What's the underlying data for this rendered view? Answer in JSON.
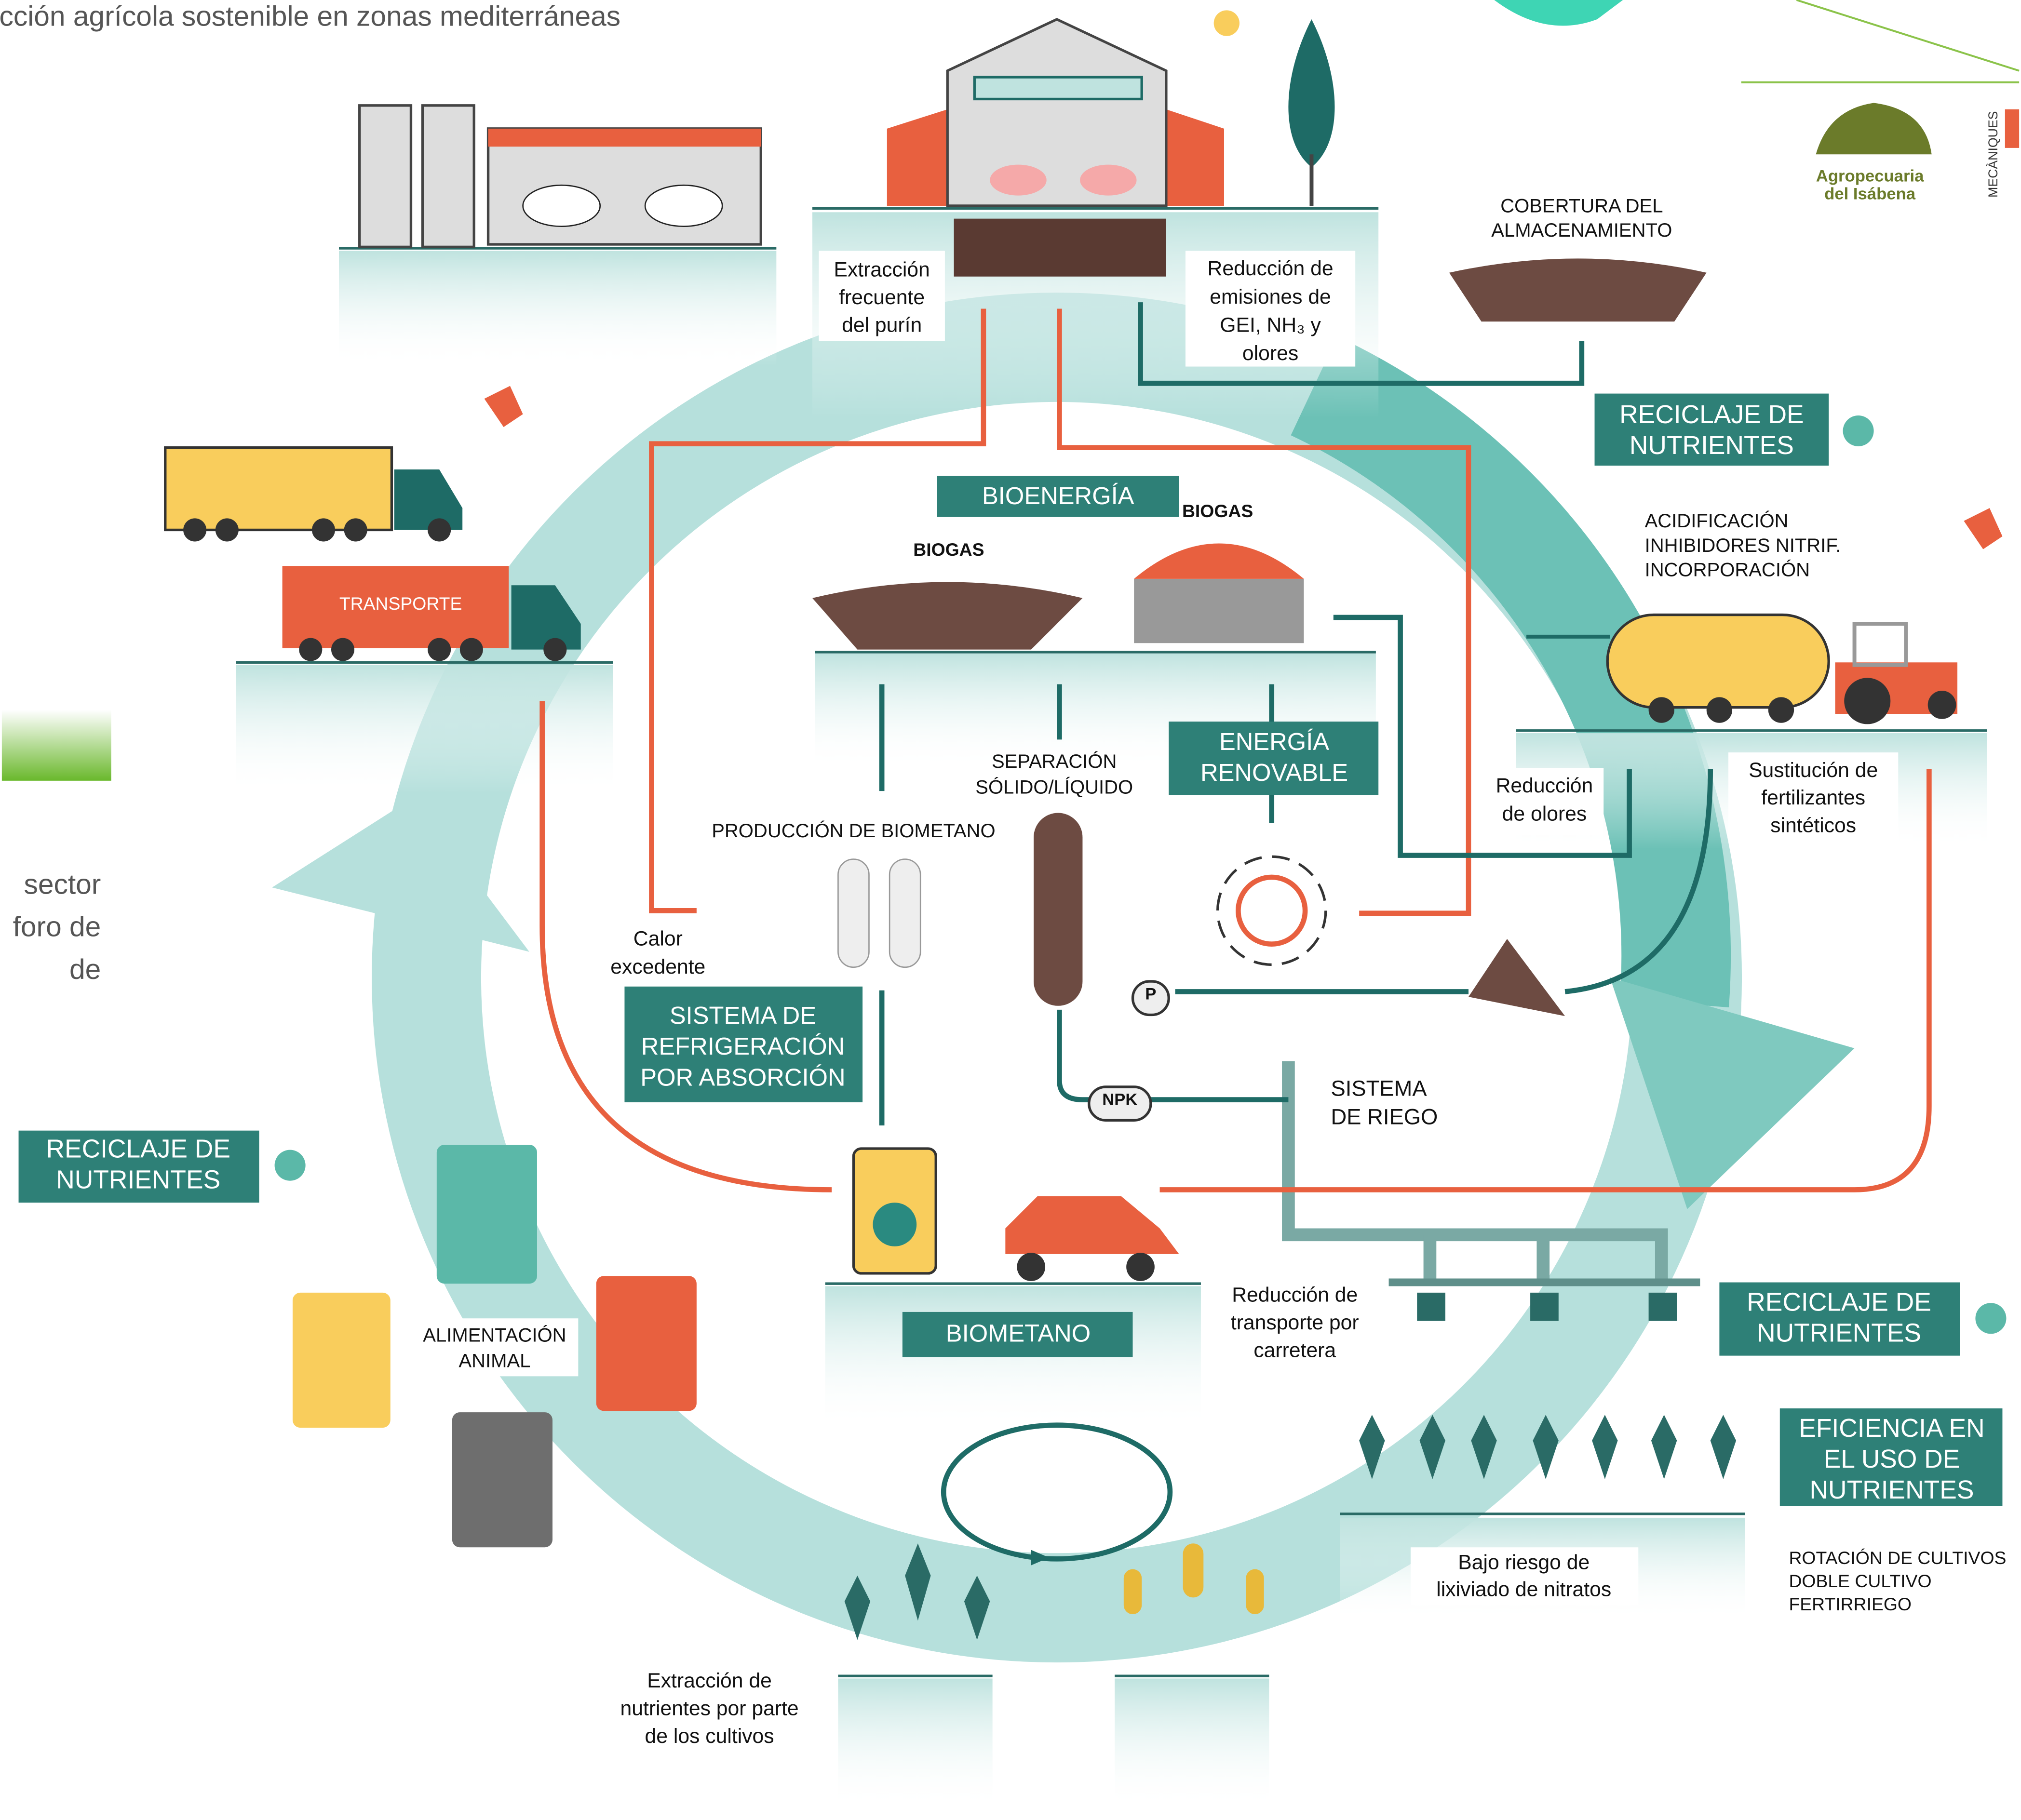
{
  "header": {
    "title": "cción agrícola sostenible en zonas mediterráneas"
  },
  "side_text": [
    "sector",
    "foro de",
    "de"
  ],
  "logo": [
    "Agropecuaria",
    "del Isábena",
    "MECÀNIQUES"
  ],
  "labels": [
    {
      "lines": [
        "Extracción",
        "frecuente",
        "del purín"
      ]
    },
    {
      "lines": [
        "Reducción de",
        "emisiones de",
        "GEI, NH₃ y",
        "olores"
      ]
    },
    {
      "lines": [
        "COBERTURA DEL",
        "ALMACENAMIENTO"
      ]
    },
    {
      "lines": [
        "RECICLAJE DE",
        "NUTRIENTES"
      ]
    },
    {
      "lines": [
        "BIOENERGÍA"
      ]
    },
    {
      "lines": [
        "BIOGAS"
      ]
    },
    {
      "lines": [
        "BIOGAS"
      ]
    },
    {
      "lines": [
        "TRANSPORTE"
      ]
    },
    {
      "lines": [
        "ACIDIFICACIÓN",
        "INHIBIDORES NITRIF.",
        "INCORPORACIÓN"
      ]
    },
    {
      "lines": [
        "SEPARACIÓN",
        "SÓLIDO/LÍQUIDO"
      ]
    },
    {
      "lines": [
        "ENERGÍA",
        "RENOVABLE"
      ]
    },
    {
      "lines": [
        "Reducción",
        "de olores"
      ]
    },
    {
      "lines": [
        "Sustitución de",
        "fertilizantes",
        "sintéticos"
      ]
    },
    {
      "lines": [
        "PRODUCCIÓN DE BIOMETANO"
      ]
    },
    {
      "lines": [
        "Calor",
        "excedente"
      ]
    },
    {
      "lines": [
        "SISTEMA DE",
        "REFRIGERACIÓN",
        "POR ABSORCIÓN"
      ]
    },
    {
      "lines": [
        "P"
      ]
    },
    {
      "lines": [
        "NPK"
      ]
    },
    {
      "lines": [
        "SISTEMA",
        "DE RIEGO"
      ]
    },
    {
      "lines": [
        "RECICLAJE DE",
        "NUTRIENTES"
      ]
    },
    {
      "lines": [
        "ALIMENTACIÓN",
        "ANIMAL"
      ]
    },
    {
      "lines": [
        "BIOMETANO"
      ]
    },
    {
      "lines": [
        "Reducción de",
        "transporte por",
        "carretera"
      ]
    },
    {
      "lines": [
        "RECICLAJE DE",
        "NUTRIENTES"
      ]
    },
    {
      "lines": [
        "EFICIENCIA EN",
        "EL USO DE",
        "NUTRIENTES"
      ]
    },
    {
      "lines": [
        "ROTACIÓN DE CULTIVOS",
        "DOBLE CULTIVO",
        "FERTIRRIEGO"
      ]
    },
    {
      "lines": [
        "Bajo riesgo de",
        "lixiviado de nitratos"
      ]
    },
    {
      "lines": [
        "Extracción de",
        "nutrientes por parte",
        "de los cultivos"
      ]
    }
  ]
}
